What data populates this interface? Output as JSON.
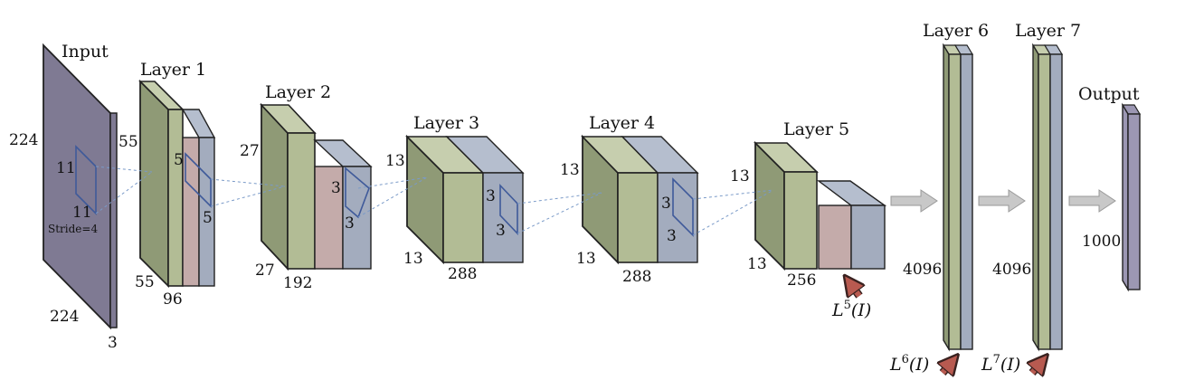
{
  "colors": {
    "input_face": "#7f7a93",
    "green_front": "#b2bc95",
    "green_side": "#8f9a76",
    "green_top": "#c6ceae",
    "pink": "#c4abaa",
    "blue_front": "#a3acbe",
    "blue_side": "#8a93a6",
    "blue_top": "#b5bece",
    "output_face": "#9c97b3",
    "filter_outline": "#3f5a9a",
    "dash_line": "#7a9ac8",
    "pointer_arrow": "#b85a50",
    "flow_arrow": "#c8c8c8"
  },
  "input": {
    "title": "Input",
    "size_left": "224",
    "size_bottom": "224",
    "depth": "3",
    "kernel_top": "11",
    "kernel_bottom": "11",
    "stride": "Stride=4"
  },
  "layer1": {
    "title": "Layer 1",
    "size_left": "55",
    "size_bottom": "55",
    "depth": "96",
    "kernel_a": "5",
    "kernel_b": "5"
  },
  "layer2": {
    "title": "Layer 2",
    "size_left": "27",
    "size_bottom": "27",
    "depth": "192",
    "kernel_a": "3",
    "kernel_b": "3"
  },
  "layer3": {
    "title": "Layer 3",
    "size_left": "13",
    "size_bottom": "13",
    "depth": "288",
    "kernel_a": "3",
    "kernel_b": "3"
  },
  "layer4": {
    "title": "Layer 4",
    "size_left": "13",
    "size_bottom": "13",
    "depth": "288",
    "kernel_a": "3",
    "kernel_b": "3"
  },
  "layer5": {
    "title": "Layer 5",
    "size_left": "13",
    "size_bottom": "13",
    "depth": "256",
    "feature_label": "L",
    "feature_sup": "5",
    "feature_arg": "(I)"
  },
  "layer6": {
    "title": "Layer 6",
    "units": "4096",
    "feature_label": "L",
    "feature_sup": "6",
    "feature_arg": "(I)"
  },
  "layer7": {
    "title": "Layer 7",
    "units": "4096",
    "feature_label": "L",
    "feature_sup": "7",
    "feature_arg": "(I)"
  },
  "output": {
    "title": "Output",
    "units": "1000"
  }
}
